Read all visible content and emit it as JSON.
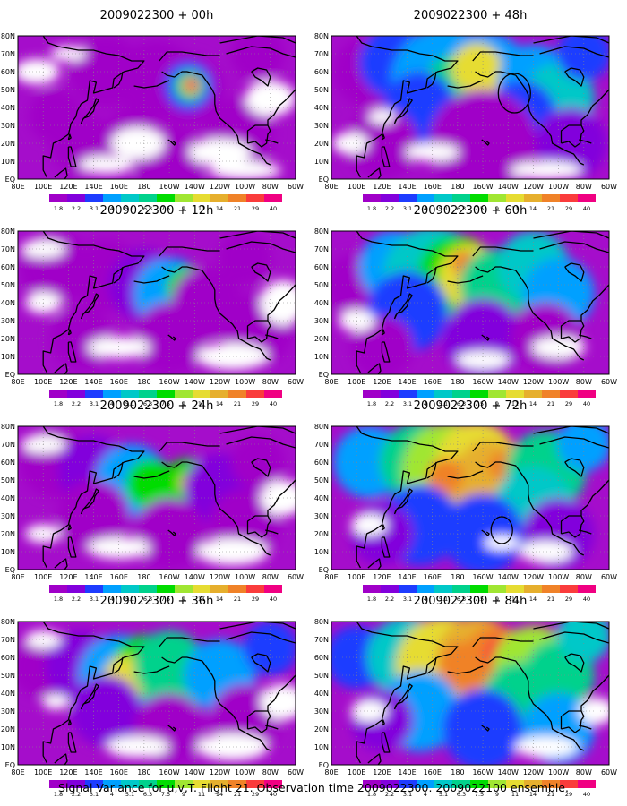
{
  "caption": "Signal Variance for u,v,T. Flight 21. Observation time 2009022300. 2009022100 ensemble.",
  "colorbar": {
    "labels": [
      "1.8",
      "2.2",
      "3.1",
      "4",
      "5.1",
      "6.3",
      "7.5",
      "9",
      "11",
      "14",
      "21",
      "29",
      "40"
    ],
    "colors": [
      "#a000c8",
      "#8200dc",
      "#1e3cff",
      "#00a0ff",
      "#00c8c8",
      "#00d28c",
      "#00dc00",
      "#a0e632",
      "#e6dc32",
      "#e6af2d",
      "#f08228",
      "#fa3c3c",
      "#f00082"
    ]
  },
  "axes": {
    "x_ticks": [
      "80E",
      "100E",
      "120E",
      "140E",
      "160E",
      "180",
      "160W",
      "140W",
      "120W",
      "100W",
      "80W",
      "60W"
    ],
    "y_ticks": [
      "80N",
      "70N",
      "60N",
      "50N",
      "40N",
      "30N",
      "20N",
      "10N",
      "EQ"
    ]
  },
  "chart_data": [
    {
      "type": "heatmap",
      "title": "2009022300 + 00h",
      "level_max": 40,
      "encircled": false
    },
    {
      "type": "heatmap",
      "title": "2009022300 + 48h",
      "level_max": 40,
      "encircled": true
    },
    {
      "type": "heatmap",
      "title": "2009022300 + 12h",
      "level_max": 14,
      "encircled": false
    },
    {
      "type": "heatmap",
      "title": "2009022300 + 60h",
      "level_max": 21,
      "encircled": false
    },
    {
      "type": "heatmap",
      "title": "2009022300 + 24h",
      "level_max": 14,
      "encircled": false
    },
    {
      "type": "heatmap",
      "title": "2009022300 + 72h",
      "level_max": 21,
      "encircled": true
    },
    {
      "type": "heatmap",
      "title": "2009022300 + 36h",
      "level_max": 21,
      "encircled": false
    },
    {
      "type": "heatmap",
      "title": "2009022300 + 84h",
      "level_max": 29,
      "encircled": false
    }
  ]
}
